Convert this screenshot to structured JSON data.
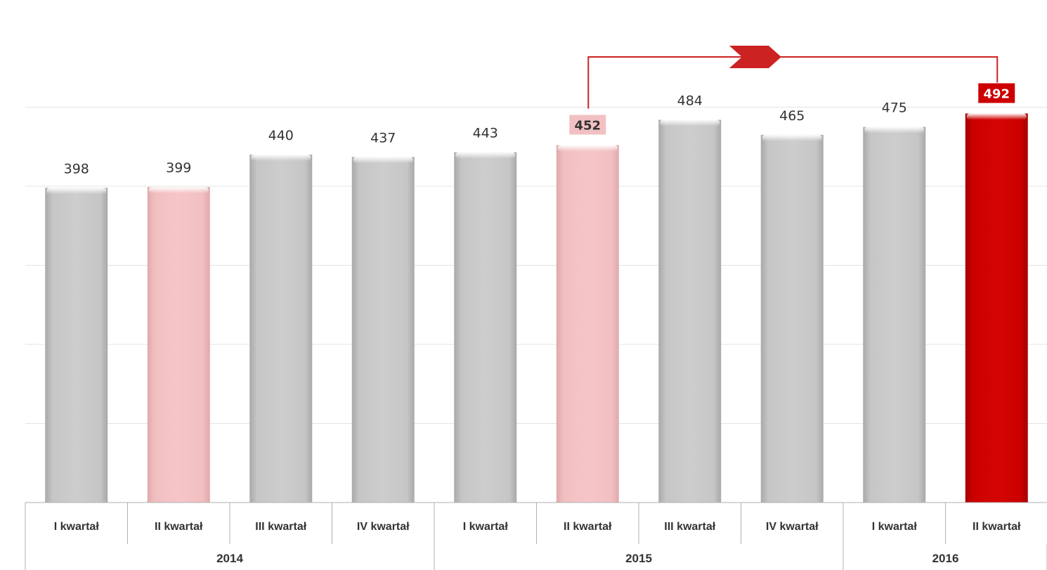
{
  "chart_data": {
    "type": "bar",
    "title": "",
    "xlabel": "",
    "ylabel": "",
    "ylim": [
      0,
      500
    ],
    "grid": true,
    "groups": [
      {
        "year": "2014",
        "categories": [
          "I kwartał",
          "II kwartał",
          "III kwartał",
          "IV kwartał"
        ]
      },
      {
        "year": "2015",
        "categories": [
          "I kwartał",
          "II kwartał",
          "III kwartał",
          "IV kwartał"
        ]
      },
      {
        "year": "2016",
        "categories": [
          "I kwartał",
          "II kwartał"
        ]
      }
    ],
    "categories": [
      "I kwartał",
      "II kwartał",
      "III kwartał",
      "IV kwartał",
      "I kwartał",
      "II kwartał",
      "III kwartał",
      "IV kwartał",
      "I kwartał",
      "II kwartał"
    ],
    "values": [
      398,
      399,
      440,
      437,
      443,
      452,
      484,
      465,
      475,
      492
    ],
    "bar_colors": [
      "#c8c8c8",
      "#f2c0c2",
      "#c8c8c8",
      "#c8c8c8",
      "#c8c8c8",
      "#f2c0c2",
      "#c8c8c8",
      "#c8c8c8",
      "#c8c8c8",
      "#cc0000"
    ],
    "highlight_labels": {
      "5": {
        "fill": "#f2c0c2",
        "text_color": "#333333"
      },
      "9": {
        "fill": "#cc0000",
        "text_color": "#ffffff"
      }
    },
    "comparison_arrow": {
      "from": 5,
      "to": 9,
      "color": "#cc2222"
    }
  }
}
